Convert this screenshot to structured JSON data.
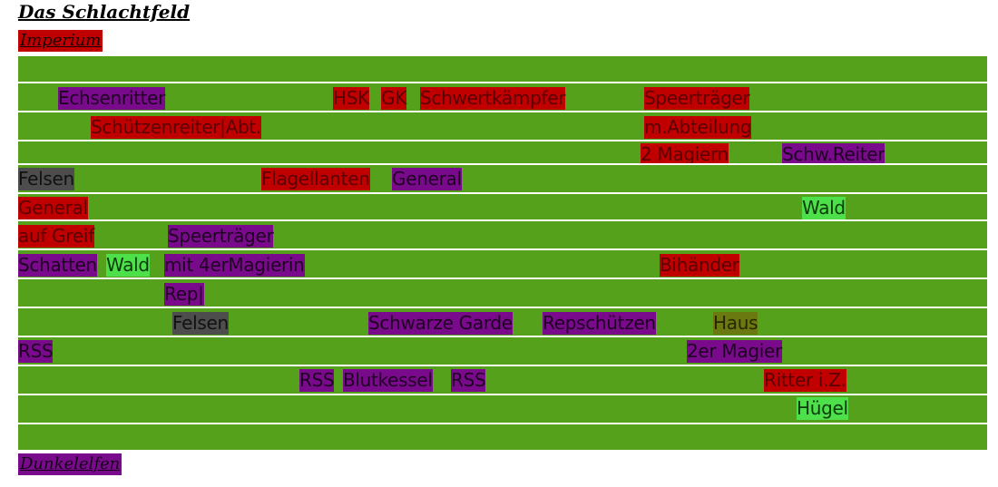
{
  "title": "Das Schlachtfeld",
  "factions": {
    "top": "Imperium",
    "bottom": "Dunkelelfen"
  },
  "colors": {
    "field": "#55a11c",
    "imperium": "#c00000",
    "dunkelelfen": "#7a0a8c",
    "terrain_rock": "#4d4d4d",
    "terrain_forest": "#4ee04a",
    "terrain_house": "#6a7a10"
  },
  "units": [
    {
      "text": "Echsenritter",
      "color": "purple"
    },
    {
      "text": "HSK",
      "color": "red"
    },
    {
      "text": "GK",
      "color": "red"
    },
    {
      "text": "Schwertkämpfer",
      "color": "red"
    },
    {
      "text": "Speerträger",
      "color": "red"
    },
    {
      "text": "Schützenreiter|Abt.",
      "color": "red"
    },
    {
      "text": "m.Abteilung",
      "color": "red"
    },
    {
      "text": "2 Magiern",
      "color": "red"
    },
    {
      "text": "Schw.Reiter",
      "color": "purple"
    },
    {
      "text": "Felsen",
      "color": "gray"
    },
    {
      "text": "Flagellanten",
      "color": "red"
    },
    {
      "text": "General",
      "color": "purple"
    },
    {
      "text": "General",
      "color": "red"
    },
    {
      "text": "Wald",
      "color": "lgreen"
    },
    {
      "text": "auf Greif",
      "color": "red"
    },
    {
      "text": "Speerträger",
      "color": "purple"
    },
    {
      "text": "Schatten",
      "color": "purple"
    },
    {
      "text": "Wald",
      "color": "lgreen"
    },
    {
      "text": "mit 4erMagierin",
      "color": "purple"
    },
    {
      "text": "Bihänder",
      "color": "red"
    },
    {
      "text": "Rep|",
      "color": "purple"
    },
    {
      "text": "Felsen",
      "color": "gray"
    },
    {
      "text": "Schwarze Garde",
      "color": "purple"
    },
    {
      "text": "Repschützen",
      "color": "purple"
    },
    {
      "text": "Haus",
      "color": "olive"
    },
    {
      "text": "RSS",
      "color": "purple"
    },
    {
      "text": "2er Magier",
      "color": "purple"
    },
    {
      "text": "RSS",
      "color": "purple"
    },
    {
      "text": "Blutkessel",
      "color": "purple"
    },
    {
      "text": "RSS",
      "color": "purple"
    },
    {
      "text": "Ritter i.Z.",
      "color": "red"
    },
    {
      "text": "Hügel",
      "color": "lgreen"
    }
  ]
}
